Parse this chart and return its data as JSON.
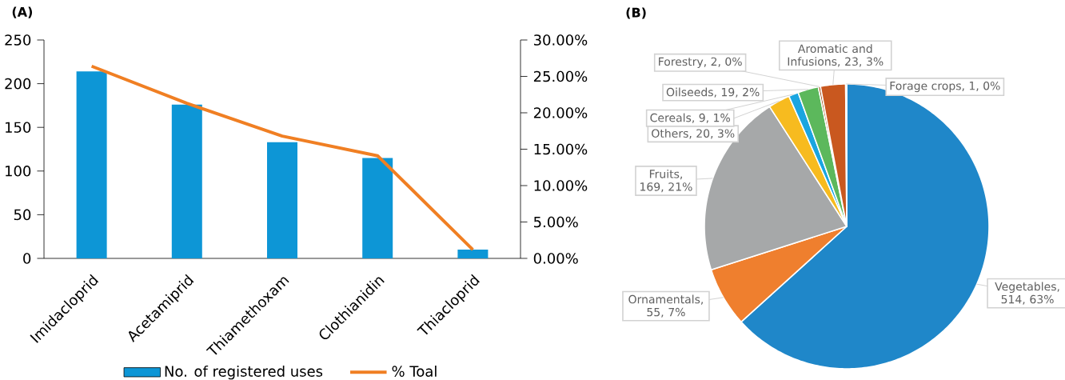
{
  "chart_data": [
    {
      "type": "bar",
      "title": "(A)",
      "categories": [
        "Imidacloprid",
        "Acetamiprid",
        "Thiamethoxam",
        "Clothianidin",
        "Thiacloprid"
      ],
      "series": [
        {
          "name": "No. of registered uses",
          "color": "#0d96d6",
          "values": [
            214,
            176,
            133,
            115,
            10
          ]
        },
        {
          "name": "% Toal",
          "type": "line",
          "axis": "y2",
          "color": "#f07f23",
          "values": [
            26.4,
            21.3,
            16.8,
            14.1,
            1.2
          ]
        }
      ],
      "ylim": [
        0,
        250
      ],
      "yticks": [
        0,
        50,
        100,
        150,
        200,
        250
      ],
      "y2lim": [
        0,
        30
      ],
      "y2ticks": [
        {
          "value": 0,
          "label": "0.00%"
        },
        {
          "value": 5,
          "label": "5.00%"
        },
        {
          "value": 10,
          "label": "10.00%"
        },
        {
          "value": 15,
          "label": "15.00%"
        },
        {
          "value": 20,
          "label": "20.00%"
        },
        {
          "value": 25,
          "label": "25.00%"
        },
        {
          "value": 30,
          "label": "30.00%"
        }
      ],
      "legend": "bottom",
      "marker": "none",
      "line_style": "solid"
    },
    {
      "type": "pie",
      "title": "(B)",
      "categories": [
        "Vegetables",
        "Ornamentals",
        "Fruits",
        "Others",
        "Cereals",
        "Oilseeds",
        "Forestry",
        "Aromatic and Infusions",
        "Forage crops"
      ],
      "values": [
        514,
        55,
        169,
        20,
        9,
        19,
        2,
        23,
        1
      ],
      "colors": [
        "#1f87c9",
        "#ef7f2e",
        "#a6a8a9",
        "#f7bb1f",
        "#1aa5e0",
        "#5cb85c",
        "#9e480e",
        "#c9581f",
        "#264478"
      ],
      "value_labels": [
        ", 514, 63%",
        ", 55, 7%",
        ", 169, 21%",
        ", 20, 3%",
        ", 9, 1%",
        ", 19, 2%",
        ", 2, 0%",
        ", 23, 3%",
        ", 1, 0%"
      ]
    }
  ]
}
